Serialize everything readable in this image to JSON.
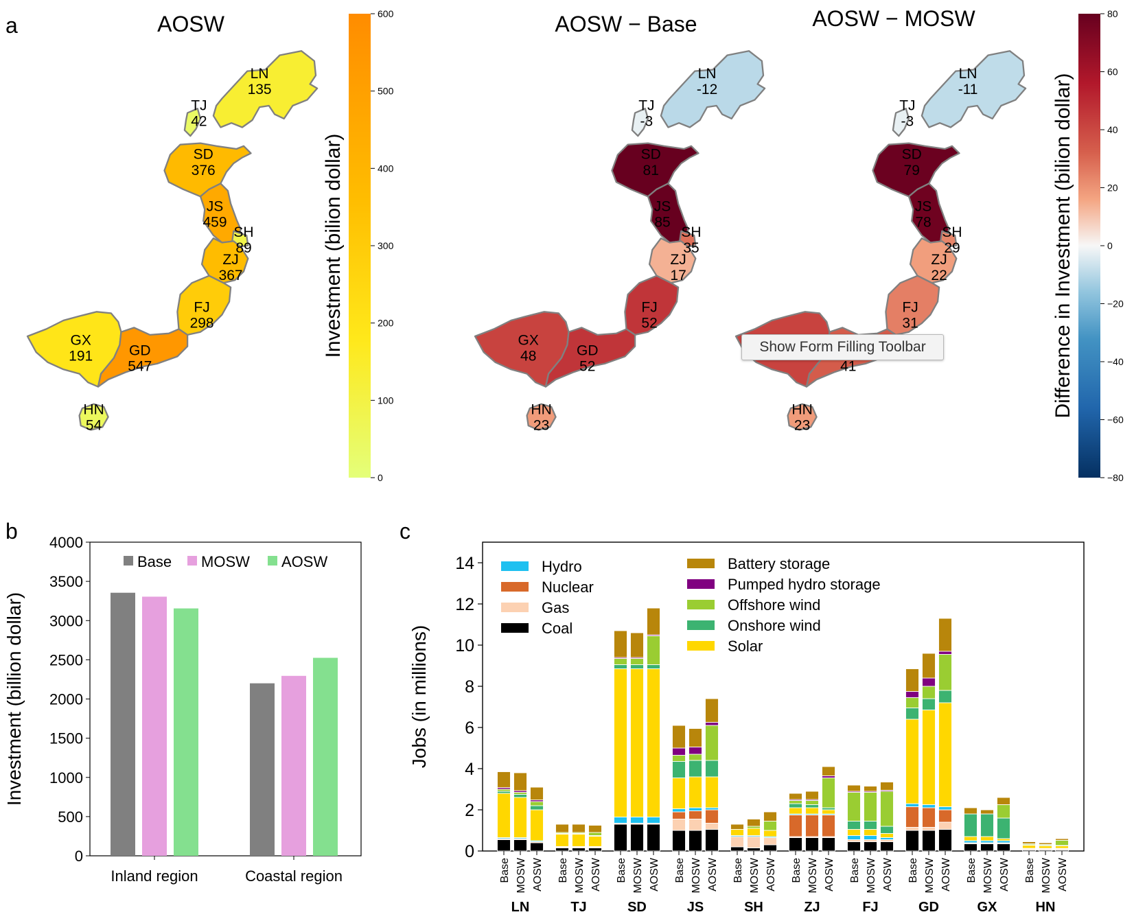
{
  "panel_labels": {
    "a": "a",
    "b": "b",
    "c": "c"
  },
  "tooltip": {
    "label": "Show Form Filling Toolbar"
  },
  "colors": {
    "base": "#808080",
    "mosw": "#e6a0de",
    "aosw": "#84e08f",
    "hydro": "#1ec0f0",
    "nuclear": "#d8692a",
    "gas": "#fcd1b2",
    "coal": "#000000",
    "battery": "#b8860b",
    "pumped": "#800080",
    "offshore": "#9acd32",
    "onshore": "#3cb371",
    "solar": "#ffd700"
  },
  "chart_data": [
    {
      "type": "choropleth",
      "panel": "a",
      "title": "AOSW",
      "colorbar": {
        "label": "Investment (bilion dollar)",
        "range": [
          0,
          600
        ],
        "ticks": [
          "0",
          "100",
          "200",
          "300",
          "400",
          "500",
          "600"
        ],
        "colormap": "Wistia"
      },
      "regions": [
        {
          "code": "LN",
          "value": "135"
        },
        {
          "code": "TJ",
          "value": "42"
        },
        {
          "code": "SD",
          "value": "376"
        },
        {
          "code": "JS",
          "value": "459"
        },
        {
          "code": "SH",
          "value": "89"
        },
        {
          "code": "ZJ",
          "value": "367"
        },
        {
          "code": "FJ",
          "value": "298"
        },
        {
          "code": "GX",
          "value": "191"
        },
        {
          "code": "GD",
          "value": "547"
        },
        {
          "code": "HN",
          "value": "54"
        }
      ]
    },
    {
      "type": "choropleth",
      "panel": "a",
      "title": "AOSW − Base",
      "regions": [
        {
          "code": "LN",
          "value": "-12"
        },
        {
          "code": "TJ",
          "value": "-3"
        },
        {
          "code": "SD",
          "value": "81"
        },
        {
          "code": "JS",
          "value": "85"
        },
        {
          "code": "SH",
          "value": "35"
        },
        {
          "code": "ZJ",
          "value": "17"
        },
        {
          "code": "FJ",
          "value": "52"
        },
        {
          "code": "GX",
          "value": "48"
        },
        {
          "code": "GD",
          "value": "52"
        },
        {
          "code": "HN",
          "value": "23"
        }
      ]
    },
    {
      "type": "choropleth",
      "panel": "a",
      "title": "AOSW − MOSW",
      "colorbar": {
        "label": "Difference in Investment (bilion dollar)",
        "range": [
          -80,
          80
        ],
        "ticks": [
          "−80",
          "−60",
          "−40",
          "−20",
          "0",
          "20",
          "40",
          "60",
          "80"
        ],
        "colormap": "RdBu_r"
      },
      "regions": [
        {
          "code": "LN",
          "value": "-11"
        },
        {
          "code": "TJ",
          "value": "-3"
        },
        {
          "code": "SD",
          "value": "79"
        },
        {
          "code": "JS",
          "value": "78"
        },
        {
          "code": "SH",
          "value": "29"
        },
        {
          "code": "ZJ",
          "value": "22"
        },
        {
          "code": "FJ",
          "value": "31"
        },
        {
          "code": "GX",
          "value": ""
        },
        {
          "code": "GD",
          "value": "41"
        },
        {
          "code": "HN",
          "value": "23"
        }
      ]
    },
    {
      "type": "bar",
      "panel": "b",
      "ylabel": "Investment (billion dollar)",
      "ylim": [
        0,
        4000
      ],
      "yticks": [
        "0",
        "500",
        "1000",
        "1500",
        "2000",
        "2500",
        "3000",
        "3500",
        "4000"
      ],
      "categories": [
        "Inland region",
        "Coastal region"
      ],
      "legend_position": "top-center",
      "series": [
        {
          "name": "Base",
          "values": [
            3355,
            2200
          ]
        },
        {
          "name": "MOSW",
          "values": [
            3305,
            2295
          ]
        },
        {
          "name": "AOSW",
          "values": [
            3155,
            2525
          ]
        }
      ]
    },
    {
      "type": "stacked-bar",
      "panel": "c",
      "ylabel": "Jobs (in millions)",
      "ylim": [
        0,
        15
      ],
      "yticks": [
        "0",
        "2",
        "4",
        "6",
        "8",
        "10",
        "12",
        "14"
      ],
      "scenarios": [
        "Base",
        "MOSW",
        "AOSW"
      ],
      "legend_position": "top-left",
      "legend": [
        {
          "key": "hydro",
          "label": "Hydro"
        },
        {
          "key": "nuclear",
          "label": "Nuclear"
        },
        {
          "key": "gas",
          "label": "Gas"
        },
        {
          "key": "coal",
          "label": "Coal"
        },
        {
          "key": "battery",
          "label": "Battery storage"
        },
        {
          "key": "pumped",
          "label": "Pumped hydro storage"
        },
        {
          "key": "offshore",
          "label": "Offshore wind"
        },
        {
          "key": "onshore",
          "label": "Onshore wind"
        },
        {
          "key": "solar",
          "label": "Solar"
        }
      ],
      "stack_order": [
        "coal",
        "gas",
        "nuclear",
        "hydro",
        "solar",
        "onshore",
        "offshore",
        "pumped",
        "battery"
      ],
      "provinces": [
        {
          "code": "LN",
          "bars": [
            {
              "coal": 0.55,
              "gas": 0.05,
              "nuclear": 0,
              "hydro": 0.05,
              "solar": 2.15,
              "onshore": 0.1,
              "offshore": 0.1,
              "pumped": 0.08,
              "battery": 0.77
            },
            {
              "coal": 0.55,
              "gas": 0.05,
              "nuclear": 0,
              "hydro": 0.05,
              "solar": 1.95,
              "onshore": 0.15,
              "offshore": 0.1,
              "pumped": 0.08,
              "battery": 0.87
            },
            {
              "coal": 0.4,
              "gas": 0.05,
              "nuclear": 0,
              "hydro": 0.05,
              "solar": 1.5,
              "onshore": 0.2,
              "offshore": 0.2,
              "pumped": 0.08,
              "battery": 0.62
            }
          ]
        },
        {
          "code": "TJ",
          "bars": [
            {
              "coal": 0.15,
              "gas": 0.05,
              "nuclear": 0,
              "hydro": 0.02,
              "solar": 0.6,
              "onshore": 0.03,
              "offshore": 0.05,
              "pumped": 0,
              "battery": 0.4
            },
            {
              "coal": 0.15,
              "gas": 0.05,
              "nuclear": 0,
              "hydro": 0.02,
              "solar": 0.6,
              "onshore": 0.03,
              "offshore": 0.05,
              "pumped": 0,
              "battery": 0.4
            },
            {
              "coal": 0.15,
              "gas": 0.05,
              "nuclear": 0,
              "hydro": 0.02,
              "solar": 0.5,
              "onshore": 0.03,
              "offshore": 0.15,
              "pumped": 0,
              "battery": 0.35
            }
          ]
        },
        {
          "code": "SD",
          "bars": [
            {
              "coal": 1.3,
              "gas": 0.05,
              "nuclear": 0,
              "hydro": 0.3,
              "solar": 7.2,
              "onshore": 0.2,
              "offshore": 0.3,
              "pumped": 0.05,
              "battery": 1.3
            },
            {
              "coal": 1.3,
              "gas": 0.05,
              "nuclear": 0,
              "hydro": 0.3,
              "solar": 7.2,
              "onshore": 0.2,
              "offshore": 0.3,
              "pumped": 0.05,
              "battery": 1.2
            },
            {
              "coal": 1.3,
              "gas": 0.05,
              "nuclear": 0,
              "hydro": 0.3,
              "solar": 7.2,
              "onshore": 0.2,
              "offshore": 1.4,
              "pumped": 0.05,
              "battery": 1.3
            }
          ]
        },
        {
          "code": "JS",
          "bars": [
            {
              "coal": 1.0,
              "gas": 0.55,
              "nuclear": 0.35,
              "hydro": 0.15,
              "solar": 1.5,
              "onshore": 0.8,
              "offshore": 0.3,
              "pumped": 0.35,
              "battery": 1.1
            },
            {
              "coal": 1.0,
              "gas": 0.55,
              "nuclear": 0.4,
              "hydro": 0.15,
              "solar": 1.5,
              "onshore": 0.8,
              "offshore": 0.3,
              "pumped": 0.35,
              "battery": 0.9
            },
            {
              "coal": 1.05,
              "gas": 0.3,
              "nuclear": 0.65,
              "hydro": 0.1,
              "solar": 1.5,
              "onshore": 0.8,
              "offshore": 1.7,
              "pumped": 0.15,
              "battery": 1.15
            }
          ]
        },
        {
          "code": "SH",
          "bars": [
            {
              "coal": 0.2,
              "gas": 0.5,
              "nuclear": 0,
              "hydro": 0.05,
              "solar": 0.3,
              "onshore": 0,
              "offshore": 0,
              "pumped": 0,
              "battery": 0.25
            },
            {
              "coal": 0.15,
              "gas": 0.55,
              "nuclear": 0,
              "hydro": 0.05,
              "solar": 0.35,
              "onshore": 0,
              "offshore": 0.1,
              "pumped": 0,
              "battery": 0.35
            },
            {
              "coal": 0.3,
              "gas": 0.35,
              "nuclear": 0,
              "hydro": 0.05,
              "solar": 0.3,
              "onshore": 0,
              "offshore": 0.45,
              "pumped": 0,
              "battery": 0.45
            }
          ]
        },
        {
          "code": "ZJ",
          "bars": [
            {
              "coal": 0.65,
              "gas": 0.05,
              "nuclear": 1.05,
              "hydro": 0.05,
              "solar": 0.3,
              "onshore": 0.2,
              "offshore": 0.15,
              "pumped": 0.05,
              "battery": 0.3
            },
            {
              "coal": 0.65,
              "gas": 0.05,
              "nuclear": 1.05,
              "hydro": 0.05,
              "solar": 0.3,
              "onshore": 0.15,
              "offshore": 0.2,
              "pumped": 0.05,
              "battery": 0.4
            },
            {
              "coal": 0.65,
              "gas": 0.05,
              "nuclear": 1.05,
              "hydro": 0.05,
              "solar": 0.2,
              "onshore": 0.1,
              "offshore": 1.45,
              "pumped": 0.1,
              "battery": 0.45
            }
          ]
        },
        {
          "code": "FJ",
          "bars": [
            {
              "coal": 0.45,
              "gas": 0.1,
              "nuclear": 0,
              "hydro": 0.2,
              "solar": 0.3,
              "onshore": 0.4,
              "offshore": 1.4,
              "pumped": 0.05,
              "battery": 0.3
            },
            {
              "coal": 0.45,
              "gas": 0.1,
              "nuclear": 0,
              "hydro": 0.2,
              "solar": 0.3,
              "onshore": 0.4,
              "offshore": 1.4,
              "pumped": 0.05,
              "battery": 0.25
            },
            {
              "coal": 0.45,
              "gas": 0.1,
              "nuclear": 0,
              "hydro": 0.1,
              "solar": 0.2,
              "onshore": 0.35,
              "offshore": 1.7,
              "pumped": 0.05,
              "battery": 0.4
            }
          ]
        },
        {
          "code": "GD",
          "bars": [
            {
              "coal": 1.0,
              "gas": 0.15,
              "nuclear": 1.0,
              "hydro": 0.15,
              "solar": 4.1,
              "onshore": 0.55,
              "offshore": 0.5,
              "pumped": 0.3,
              "battery": 1.1
            },
            {
              "coal": 1.0,
              "gas": 0.15,
              "nuclear": 0.95,
              "hydro": 0.15,
              "solar": 4.6,
              "onshore": 0.55,
              "offshore": 0.6,
              "pumped": 0.4,
              "battery": 1.2
            },
            {
              "coal": 1.05,
              "gas": 0.35,
              "nuclear": 0.6,
              "hydro": 0.15,
              "solar": 5.05,
              "onshore": 0.6,
              "offshore": 1.75,
              "pumped": 0.15,
              "battery": 1.6
            }
          ]
        },
        {
          "code": "GX",
          "bars": [
            {
              "coal": 0.35,
              "gas": 0.05,
              "nuclear": 0,
              "hydro": 0.1,
              "solar": 0.2,
              "onshore": 1.1,
              "offshore": 0,
              "pumped": 0,
              "battery": 0.3
            },
            {
              "coal": 0.35,
              "gas": 0.05,
              "nuclear": 0,
              "hydro": 0.1,
              "solar": 0.2,
              "onshore": 1.1,
              "offshore": 0,
              "pumped": 0,
              "battery": 0.2
            },
            {
              "coal": 0.35,
              "gas": 0.05,
              "nuclear": 0,
              "hydro": 0.1,
              "solar": 0.1,
              "onshore": 1.0,
              "offshore": 0.65,
              "pumped": 0,
              "battery": 0.35
            }
          ]
        },
        {
          "code": "HN",
          "bars": [
            {
              "coal": 0.05,
              "gas": 0.05,
              "nuclear": 0,
              "hydro": 0.03,
              "solar": 0.15,
              "onshore": 0.02,
              "offshore": 0.05,
              "pumped": 0,
              "battery": 0.1
            },
            {
              "coal": 0.05,
              "gas": 0.05,
              "nuclear": 0,
              "hydro": 0.03,
              "solar": 0.12,
              "onshore": 0.02,
              "offshore": 0.05,
              "pumped": 0,
              "battery": 0.08
            },
            {
              "coal": 0.05,
              "gas": 0.05,
              "nuclear": 0,
              "hydro": 0.03,
              "solar": 0.12,
              "onshore": 0.02,
              "offshore": 0.25,
              "pumped": 0,
              "battery": 0.08
            }
          ]
        }
      ]
    }
  ]
}
